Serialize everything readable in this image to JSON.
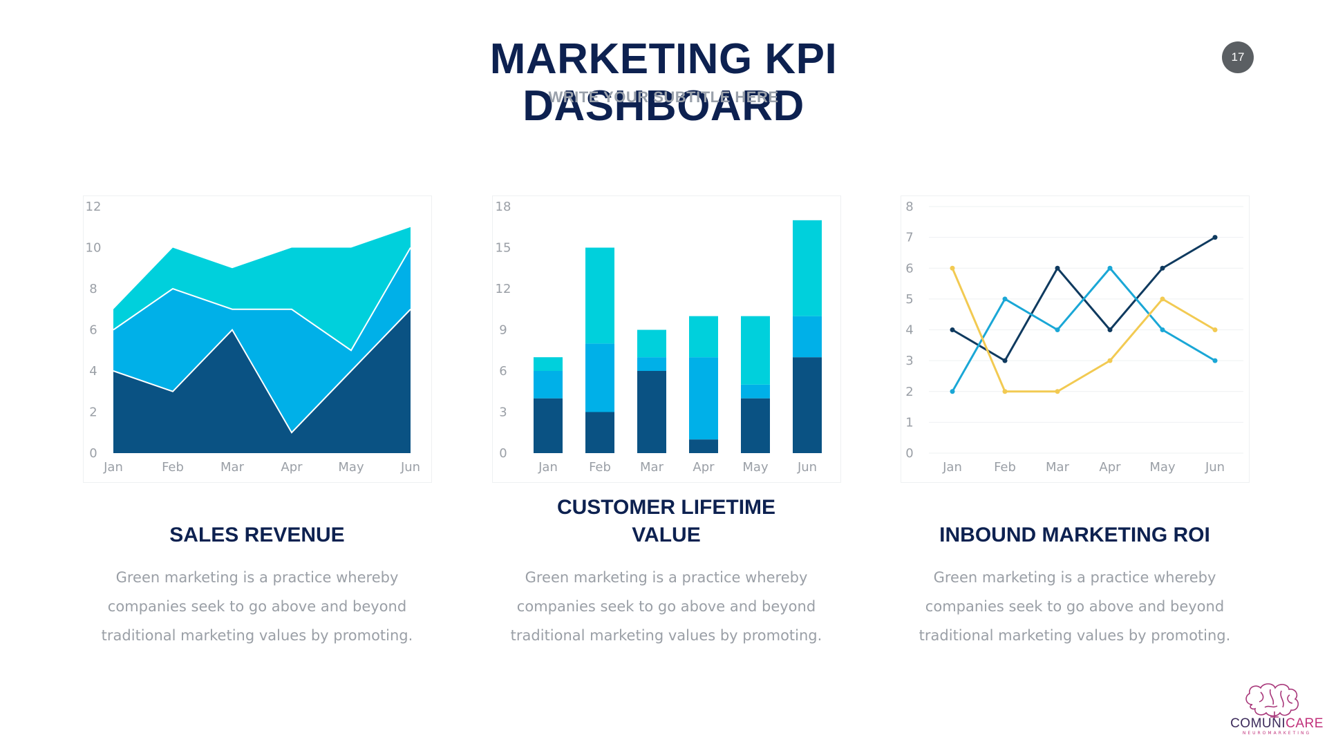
{
  "slide": {
    "title": "MARKETING KPI DASHBOARD",
    "subtitle": "WRITE YOUR SUBTITLE HERE",
    "page_number": "17"
  },
  "cards": [
    {
      "title": "SALES REVENUE",
      "description": "Green marketing is a practice whereby companies seek to go above and beyond traditional marketing values by promoting."
    },
    {
      "title": "CUSTOMER LIFETIME VALUE",
      "description": "Green marketing is a practice whereby companies seek to go above and beyond traditional marketing values by promoting."
    },
    {
      "title": "INBOUND MARKETING ROI",
      "description": "Green marketing is a practice whereby companies seek to go above and beyond traditional marketing values by promoting."
    }
  ],
  "logo": {
    "brand_part1": "COMUNI",
    "brand_part2": "CARE",
    "tagline": "NEUROMARKETING",
    "icon": "brain-icon"
  },
  "colors": {
    "title": "#0d2150",
    "dark_blue": "#0a5283",
    "mid_blue": "#00b0e8",
    "teal": "#00d0dc",
    "navy_line": "#0f3a5f",
    "sky_line": "#1aa7d6",
    "yellow_line": "#f2ca52",
    "muted_text": "#9a9fa6"
  },
  "chart_data": [
    {
      "type": "area",
      "stacked": true,
      "categories": [
        "Jan",
        "Feb",
        "Mar",
        "Apr",
        "May",
        "Jun"
      ],
      "ylim": [
        0,
        12
      ],
      "yticks": [
        0,
        2,
        4,
        6,
        8,
        10,
        12
      ],
      "series": [
        {
          "values": [
            4,
            3,
            6,
            1,
            4,
            7
          ],
          "color": "#0a5283"
        },
        {
          "values": [
            2,
            5,
            1,
            6,
            1,
            3
          ],
          "color": "#00b0e8"
        },
        {
          "values": [
            1,
            2,
            2,
            3,
            5,
            1
          ],
          "color": "#00d0dc"
        }
      ]
    },
    {
      "type": "bar",
      "stacked": true,
      "categories": [
        "Jan",
        "Feb",
        "Mar",
        "Apr",
        "May",
        "Jun"
      ],
      "ylim": [
        0,
        18
      ],
      "yticks": [
        0,
        3,
        6,
        9,
        12,
        15,
        18
      ],
      "series": [
        {
          "values": [
            4,
            3,
            6,
            1,
            4,
            7
          ],
          "color": "#0a5283"
        },
        {
          "values": [
            2,
            5,
            1,
            6,
            1,
            3
          ],
          "color": "#00b0e8"
        },
        {
          "values": [
            1,
            7,
            2,
            3,
            5,
            7
          ],
          "color": "#00d0dc"
        }
      ]
    },
    {
      "type": "line",
      "categories": [
        "Jan",
        "Feb",
        "Mar",
        "Apr",
        "May",
        "Jun"
      ],
      "ylim": [
        0,
        8
      ],
      "yticks": [
        0,
        1,
        2,
        3,
        4,
        5,
        6,
        7,
        8
      ],
      "grid": true,
      "series": [
        {
          "values": [
            4,
            3,
            6,
            4,
            6,
            7
          ],
          "color": "#0f3a5f"
        },
        {
          "values": [
            2,
            5,
            4,
            6,
            4,
            3
          ],
          "color": "#1aa7d6"
        },
        {
          "values": [
            6,
            2,
            2,
            3,
            5,
            4
          ],
          "color": "#f2ca52"
        }
      ]
    }
  ]
}
